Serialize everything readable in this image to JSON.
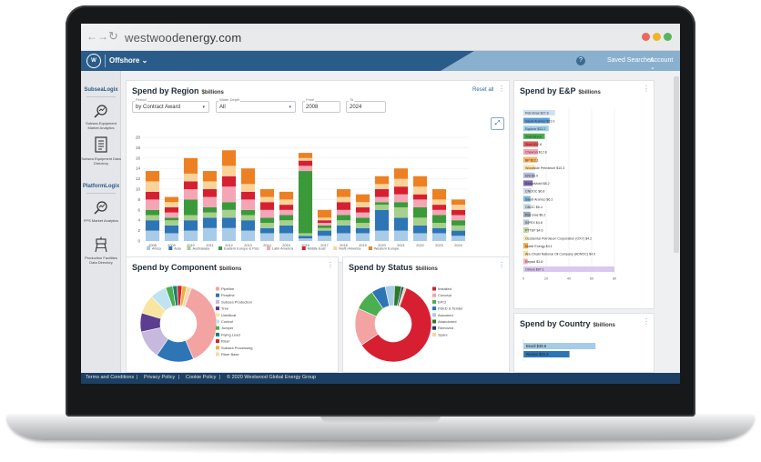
{
  "browser": {
    "url": "westwoodenergy.com",
    "back_glyph": "←",
    "forward_glyph": "→",
    "reload_glyph": "↻",
    "dot_colors": [
      "#e86a5a",
      "#f0b429",
      "#58b55c"
    ]
  },
  "appbar": {
    "logo": "W",
    "region": "Offshore",
    "region_caret": "⌄",
    "help": "?",
    "saved_searches": "Saved Searches",
    "account": "Account",
    "account_caret": "⌄"
  },
  "sidebar": {
    "groups": [
      {
        "title": "SubseaLogix",
        "items": [
          {
            "label": "Subsea Equipment Market Analytics",
            "icon": "chart-search-icon"
          },
          {
            "label": "Subsea Equipment Data Directory",
            "icon": "document-list-icon"
          }
        ]
      },
      {
        "title": "PlatformLogix",
        "items": [
          {
            "label": "FPS Market Analytics",
            "icon": "chart-search-icon"
          },
          {
            "label": "Production Facilities Data Directory",
            "icon": "platform-icon"
          }
        ]
      }
    ]
  },
  "region_panel": {
    "title": "Spend by Region",
    "unit": "$billions",
    "reset": "Reset all",
    "menu": "⋮",
    "filters": {
      "period": {
        "label": "Period",
        "value": "by Contract Award",
        "caret": "▾"
      },
      "water_depth": {
        "label": "Water Depth",
        "value": "All",
        "caret": "▾"
      },
      "from": {
        "label": "From",
        "value": "2008"
      },
      "to": {
        "label": "To",
        "value": "2024"
      }
    },
    "expand_glyph": "⤢"
  },
  "ep_panel": {
    "title": "Spend by E&P",
    "unit": "$billions",
    "menu": "⋮"
  },
  "component_panel": {
    "title": "Spend by Component",
    "unit": "$billions",
    "menu": "⋮"
  },
  "status_panel": {
    "title": "Spend by Status",
    "unit": "$billions",
    "menu": "⋮"
  },
  "country_panel": {
    "title": "Spend by Country",
    "unit": "$billions",
    "menu": "⋮"
  },
  "footer": {
    "links": [
      "Terms and Conditions",
      "Privacy Policy",
      "Cookie Policy"
    ],
    "separator": "|",
    "copyright": "© 2020 Westwood Global Energy Group"
  },
  "chart_data": [
    {
      "type": "bar",
      "stacked": true,
      "categories": [
        "2008",
        "2009",
        "2010",
        "2011",
        "2012",
        "2013",
        "2014",
        "2015",
        "2016",
        "2017",
        "2018",
        "2019",
        "2020",
        "2021",
        "2022",
        "2023",
        "2024"
      ],
      "ylim": [
        0,
        20
      ],
      "yticks": [
        0,
        2,
        4,
        6,
        8,
        10,
        12,
        14,
        16,
        18,
        20
      ],
      "series": [
        {
          "name": "Africa",
          "color": "#a8cbe8",
          "values": [
            2,
            1.5,
            2,
            2.5,
            2.5,
            2,
            1.5,
            1.5,
            0.5,
            1,
            1.5,
            1.5,
            2,
            2,
            1.5,
            1.5,
            1
          ]
        },
        {
          "name": "Asia",
          "color": "#2e75b6",
          "values": [
            2,
            1.5,
            2,
            2,
            2,
            2,
            1,
            1.5,
            0.5,
            1,
            1.5,
            1,
            4,
            2.5,
            1.5,
            1,
            1
          ]
        },
        {
          "name": "Australasia",
          "color": "#a6d08b",
          "values": [
            1,
            1,
            1,
            1,
            1.5,
            1,
            1,
            1,
            0.5,
            0.5,
            1,
            1,
            1,
            2,
            1.5,
            1,
            1
          ]
        },
        {
          "name": "Eastern Europe & FSU",
          "color": "#3a9a3a",
          "values": [
            1,
            0.5,
            3,
            1,
            1.5,
            1,
            1,
            1,
            12,
            0.5,
            1,
            1,
            0.5,
            1,
            2,
            1.5,
            1
          ]
        },
        {
          "name": "Latin America",
          "color": "#f4a6b6",
          "values": [
            2,
            1,
            2,
            2,
            3,
            2,
            1.5,
            1,
            1,
            0.5,
            1,
            1,
            1,
            1.5,
            1.5,
            1,
            1
          ]
        },
        {
          "name": "Middle East",
          "color": "#d62031",
          "values": [
            1.5,
            1,
            1.5,
            1.5,
            2,
            1.5,
            1.5,
            1,
            1,
            0.5,
            1.5,
            1,
            1.5,
            1.5,
            1,
            1,
            1
          ]
        },
        {
          "name": "North America",
          "color": "#f9d39a",
          "values": [
            2,
            1,
            1.5,
            1.5,
            2,
            1.5,
            1,
            1,
            0.5,
            0.5,
            1,
            1,
            1,
            1.5,
            1.5,
            1,
            1
          ]
        },
        {
          "name": "Western Europe",
          "color": "#ed8022",
          "values": [
            2,
            1,
            3,
            2,
            3,
            3,
            1.5,
            1.5,
            1,
            1.5,
            1.5,
            1.5,
            1.5,
            2,
            2,
            2,
            1
          ]
        }
      ]
    },
    {
      "type": "bar",
      "orientation": "horizontal",
      "categories": [
        "Petrobras $27.8",
        "Saudi Aramco $23.0",
        "Equinor $22.2",
        "Total $18.8",
        "Shell $12.8",
        "Chevron $12.8",
        "BP $12.1",
        "Woodside Petroleum $10.3",
        "ENI $9.9",
        "ExxonMobil $8.2",
        "CNOOC $6.8",
        "Saudi Aramco $6.2",
        "ONGC $6.4",
        "Petronas $6.2",
        "INPEX $4.8",
        "PTTEP $4.6",
        "Occidental Petroleum Corporation (OXY) $4.2",
        "Noble Energy $4.1",
        "Abu Dhabi National Oil Company (ADNOC) $4.0",
        "Repsol $3.8",
        "Others $97.1"
      ],
      "values": [
        27.8,
        23.0,
        22.2,
        18.8,
        12.8,
        12.8,
        12.1,
        10.3,
        9.9,
        8.2,
        6.8,
        6.2,
        6.4,
        6.2,
        4.8,
        4.6,
        4.2,
        4.1,
        4.0,
        3.8,
        97.1
      ],
      "colors": [
        "#cfe0f3",
        "#5b9bd5",
        "#9fd0e8",
        "#4bae4f",
        "#e15b5b",
        "#f4a6b6",
        "#f7b567",
        "#f9e5b0",
        "#b9b9e0",
        "#7b68b5",
        "#cfd6e6",
        "#7fb3e0",
        "#c9dae8",
        "#9aa9c2",
        "#b8c8d8",
        "#c3d8a6",
        "#f6e9c8",
        "#f3a84b",
        "#f9e0a3",
        "#f7b2b2",
        "#d9c8f0"
      ],
      "xticks": [
        0,
        20,
        40,
        60,
        80
      ]
    },
    {
      "type": "pie",
      "donut": true,
      "labels": [
        "Pipeline",
        "Flowline",
        "Subsea Production",
        "Tree",
        "Umbilical",
        "Control",
        "Jumper",
        "Flying Lead",
        "Riser",
        "Subsea Processing",
        "Riser Base"
      ],
      "values": [
        38,
        16,
        12,
        8,
        8,
        7,
        3,
        2,
        2,
        2,
        2
      ],
      "colors": [
        "#f4a3a3",
        "#2e75b6",
        "#c7b9de",
        "#5c3d8f",
        "#f9e5a0",
        "#bfe3f0",
        "#4bae4f",
        "#1a7f6f",
        "#d62031",
        "#f0b040",
        "#f4d9b0"
      ]
    },
    {
      "type": "pie",
      "donut": true,
      "labels": [
        "Installed",
        "Concept",
        "EPCI",
        "FEED & Tender",
        "Assumed",
        "Abandoned",
        "Removed",
        "Spare"
      ],
      "values": [
        60,
        16,
        9,
        6,
        4,
        3,
        1,
        1
      ],
      "colors": [
        "#d62031",
        "#f4a3a3",
        "#4bae4f",
        "#2e75b6",
        "#a8cbe8",
        "#2a7a2a",
        "#1a3f6f",
        "#f9d39a"
      ]
    },
    {
      "type": "bar",
      "orientation": "horizontal",
      "categories": [
        "Brazil $39.6",
        "Russia $25.3"
      ],
      "values": [
        39.6,
        25.3
      ],
      "colors": [
        "#a8cbe8",
        "#2e75b6"
      ]
    }
  ]
}
